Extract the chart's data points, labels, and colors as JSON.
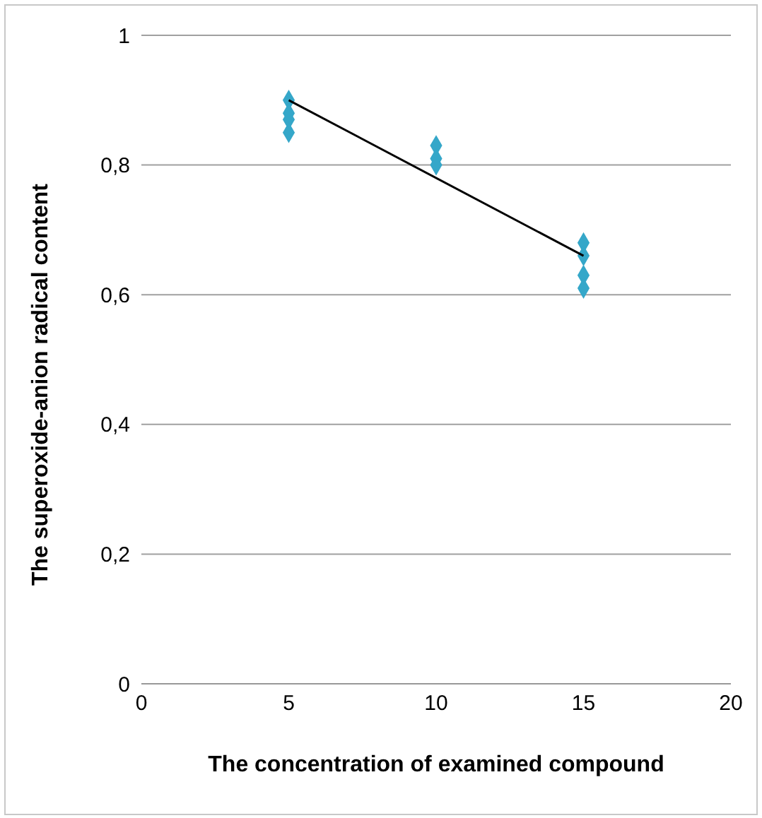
{
  "chart_data": {
    "type": "scatter",
    "xlabel": "The concentration of examined compound",
    "ylabel": "The superoxide-anion radical content",
    "xlim": [
      0,
      20
    ],
    "xticks": [
      0,
      5,
      10,
      15,
      20
    ],
    "ylim": [
      0,
      1
    ],
    "yticks": [
      0,
      {
        "value": 0.2,
        "label": "0,2"
      },
      {
        "value": 0.4,
        "label": "0,4"
      },
      {
        "value": 0.6,
        "label": "0,6"
      },
      {
        "value": 0.8,
        "label": "0,8"
      },
      1
    ],
    "grid": "y",
    "marker": "diamond",
    "series": [
      {
        "color": "#35a7c9",
        "x": [
          5,
          5,
          5,
          5,
          10,
          10,
          10,
          15,
          15,
          15,
          15
        ],
        "values": [
          0.9,
          0.88,
          0.87,
          0.85,
          0.83,
          0.81,
          0.8,
          0.68,
          0.66,
          0.63,
          0.61
        ]
      },
      {
        "type": "line",
        "color": "#000000",
        "x": [
          5,
          15
        ],
        "values": [
          0.9,
          0.66
        ],
        "marker": "none"
      }
    ]
  }
}
